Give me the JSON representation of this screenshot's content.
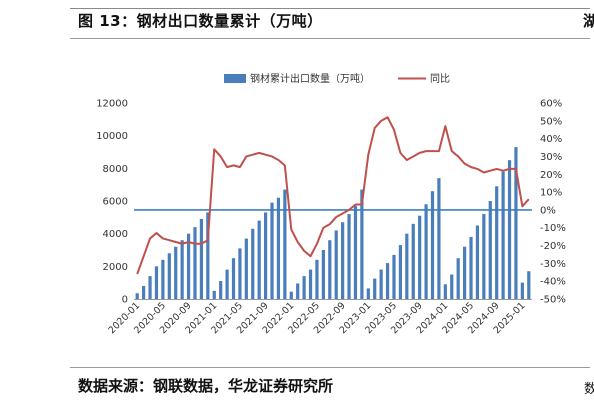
{
  "figure": {
    "title": "图 13：钢材出口数量累计（万吨）",
    "source": "数据来源：钢联数据，华龙证券研究所",
    "edge_glyph_top": "湖",
    "edge_glyph_bottom": "数"
  },
  "chart_data": {
    "type": "bar",
    "title": "",
    "xlabel": "",
    "ylabel": "",
    "ylim": [
      0,
      12000
    ],
    "y2lim": [
      -0.5,
      0.6
    ],
    "y_ticks": [
      "0",
      "2000",
      "4000",
      "6000",
      "8000",
      "10000",
      "12000"
    ],
    "y2_ticks": [
      "-50%",
      "-40%",
      "-30%",
      "-20%",
      "-10%",
      "0%",
      "10%",
      "20%",
      "30%",
      "40%",
      "50%",
      "60%"
    ],
    "x_tick_labels": [
      "2020-01",
      "2020-05",
      "2020-09",
      "2021-01",
      "2021-05",
      "2021-09",
      "2022-01",
      "2022-05",
      "2022-09",
      "2023-01",
      "2023-05",
      "2023-09",
      "2024-01",
      "2024-05",
      "2024-09",
      "2025-01"
    ],
    "legend_position": "top",
    "colors": {
      "bar": "#4a7ebb",
      "line": "#c0504d",
      "zero_line": "#3f7fbf",
      "axis": "#9a9a9a"
    },
    "categories": [
      "2020-01",
      "2020-02",
      "2020-03",
      "2020-04",
      "2020-05",
      "2020-06",
      "2020-07",
      "2020-08",
      "2020-09",
      "2020-10",
      "2020-11",
      "2020-12",
      "2021-01",
      "2021-02",
      "2021-03",
      "2021-04",
      "2021-05",
      "2021-06",
      "2021-07",
      "2021-08",
      "2021-09",
      "2021-10",
      "2021-11",
      "2021-12",
      "2022-01",
      "2022-02",
      "2022-03",
      "2022-04",
      "2022-05",
      "2022-06",
      "2022-07",
      "2022-08",
      "2022-09",
      "2022-10",
      "2022-11",
      "2022-12",
      "2023-01",
      "2023-02",
      "2023-03",
      "2023-04",
      "2023-05",
      "2023-06",
      "2023-07",
      "2023-08",
      "2023-09",
      "2023-10",
      "2023-11",
      "2023-12",
      "2024-01",
      "2024-02",
      "2024-03",
      "2024-04",
      "2024-05",
      "2024-06",
      "2024-07",
      "2024-08",
      "2024-09",
      "2024-10",
      "2024-11",
      "2024-12",
      "2025-01",
      "2025-02"
    ],
    "series": [
      {
        "name": "钢材累计出口数量（万吨）",
        "type": "bar",
        "axis": "left",
        "values": [
          350,
          800,
          1400,
          2000,
          2400,
          2800,
          3200,
          3600,
          4000,
          4400,
          4900,
          5300,
          500,
          1100,
          1800,
          2500,
          3100,
          3700,
          4300,
          4800,
          5300,
          5900,
          6200,
          6700,
          450,
          950,
          1400,
          1800,
          2400,
          3000,
          3600,
          4200,
          4700,
          5200,
          5700,
          6700,
          650,
          1250,
          1800,
          2200,
          2700,
          3300,
          4000,
          4600,
          5100,
          5800,
          6600,
          7400,
          900,
          1500,
          2500,
          3200,
          3800,
          4500,
          5200,
          6000,
          6900,
          7800,
          8500,
          9300,
          1000,
          1700
        ]
      },
      {
        "name": "同比",
        "type": "line",
        "axis": "right",
        "values": [
          -0.36,
          -0.26,
          -0.16,
          -0.13,
          -0.16,
          -0.17,
          -0.18,
          -0.19,
          -0.18,
          -0.19,
          -0.19,
          -0.17,
          0.34,
          0.3,
          0.24,
          0.25,
          0.24,
          0.3,
          0.31,
          0.32,
          0.31,
          0.3,
          0.28,
          0.25,
          -0.11,
          -0.18,
          -0.23,
          -0.26,
          -0.19,
          -0.1,
          -0.08,
          -0.04,
          -0.02,
          0.0,
          0.03,
          0.03,
          0.31,
          0.46,
          0.5,
          0.52,
          0.45,
          0.32,
          0.28,
          0.3,
          0.32,
          0.33,
          0.33,
          0.33,
          0.47,
          0.33,
          0.3,
          0.26,
          0.24,
          0.23,
          0.21,
          0.22,
          0.23,
          0.22,
          0.23,
          0.23,
          0.02,
          0.06
        ]
      }
    ]
  }
}
